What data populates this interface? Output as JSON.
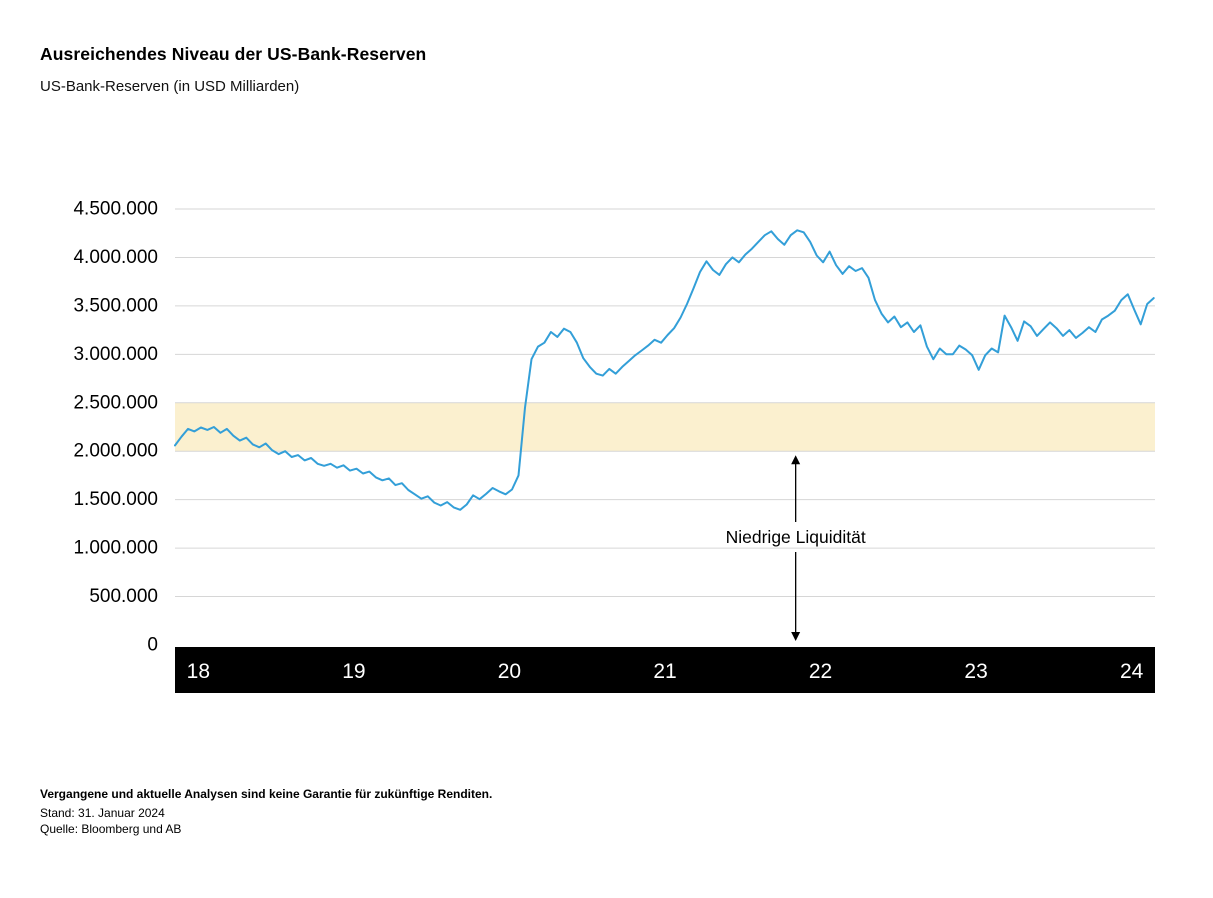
{
  "chart_data": {
    "type": "line",
    "title": "Ausreichendes Niveau der US-Bank-Reserven",
    "subtitle": "US-Bank-Reserven (in USD Milliarden)",
    "x_domain": [
      2017.85,
      2024.15
    ],
    "x_ticks": [
      {
        "value": 2018,
        "label": "18"
      },
      {
        "value": 2019,
        "label": "19"
      },
      {
        "value": 2020,
        "label": "20"
      },
      {
        "value": 2021,
        "label": "21"
      },
      {
        "value": 2022,
        "label": "22"
      },
      {
        "value": 2023,
        "label": "23"
      },
      {
        "value": 2024,
        "label": "24"
      }
    ],
    "ylim": [
      0,
      4500000
    ],
    "y_ticks": [
      {
        "value": 0,
        "label": "0"
      },
      {
        "value": 500000,
        "label": "500.000"
      },
      {
        "value": 1000000,
        "label": "1.000.000"
      },
      {
        "value": 1500000,
        "label": "1.500.000"
      },
      {
        "value": 2000000,
        "label": "2.000.000"
      },
      {
        "value": 2500000,
        "label": "2.500.000"
      },
      {
        "value": 3000000,
        "label": "3.000.000"
      },
      {
        "value": 3500000,
        "label": "3.500.000"
      },
      {
        "value": 4000000,
        "label": "4.000.000"
      },
      {
        "value": 4500000,
        "label": "4.500.000"
      }
    ],
    "grid": "horizontal",
    "grid_color": "#D6D6D6",
    "axis_bar_color": "#000000",
    "axis_label_color": "#FFFFFF",
    "band": {
      "from": 2000000,
      "to": 2500000,
      "color": "#FBF0CF"
    },
    "annotation": {
      "text": "Niedrige Liquidität",
      "x": 2021.84,
      "arrow_from": 2000000,
      "arrow_to": 0,
      "color": "#000000"
    },
    "series": [
      {
        "name": "US-Bank-Reserven",
        "color": "#339FD8",
        "x_start": 2017.85,
        "x_step": 0.0416667,
        "values": [
          2060000,
          2150000,
          2230000,
          2205000,
          2245000,
          2220000,
          2250000,
          2190000,
          2230000,
          2160000,
          2110000,
          2140000,
          2070000,
          2040000,
          2080000,
          2010000,
          1970000,
          2000000,
          1940000,
          1960000,
          1905000,
          1930000,
          1870000,
          1850000,
          1870000,
          1830000,
          1855000,
          1800000,
          1820000,
          1770000,
          1790000,
          1730000,
          1700000,
          1720000,
          1650000,
          1670000,
          1600000,
          1555000,
          1510000,
          1535000,
          1470000,
          1440000,
          1475000,
          1420000,
          1395000,
          1450000,
          1545000,
          1505000,
          1560000,
          1620000,
          1585000,
          1555000,
          1605000,
          1750000,
          2450000,
          2950000,
          3080000,
          3120000,
          3230000,
          3180000,
          3265000,
          3230000,
          3120000,
          2960000,
          2870000,
          2800000,
          2780000,
          2850000,
          2800000,
          2870000,
          2930000,
          2990000,
          3040000,
          3090000,
          3150000,
          3120000,
          3200000,
          3270000,
          3380000,
          3520000,
          3680000,
          3850000,
          3960000,
          3870000,
          3820000,
          3930000,
          4000000,
          3950000,
          4030000,
          4090000,
          4160000,
          4230000,
          4270000,
          4190000,
          4130000,
          4230000,
          4280000,
          4260000,
          4160000,
          4020000,
          3950000,
          4060000,
          3920000,
          3830000,
          3910000,
          3860000,
          3890000,
          3790000,
          3560000,
          3420000,
          3330000,
          3390000,
          3280000,
          3330000,
          3230000,
          3300000,
          3080000,
          2950000,
          3060000,
          3000000,
          3000000,
          3090000,
          3050000,
          2990000,
          2840000,
          2990000,
          3060000,
          3020000,
          3400000,
          3280000,
          3140000,
          3340000,
          3290000,
          3190000,
          3260000,
          3330000,
          3270000,
          3190000,
          3250000,
          3170000,
          3220000,
          3280000,
          3230000,
          3360000,
          3400000,
          3450000,
          3560000,
          3620000,
          3460000,
          3310000,
          3520000,
          3580000
        ]
      }
    ]
  },
  "footer": {
    "disclaimer": "Vergangene und aktuelle Analysen sind keine Garantie für zukünftige Renditen.",
    "as_of": "Stand: 31. Januar 2024",
    "source": "Quelle: Bloomberg und AB"
  }
}
